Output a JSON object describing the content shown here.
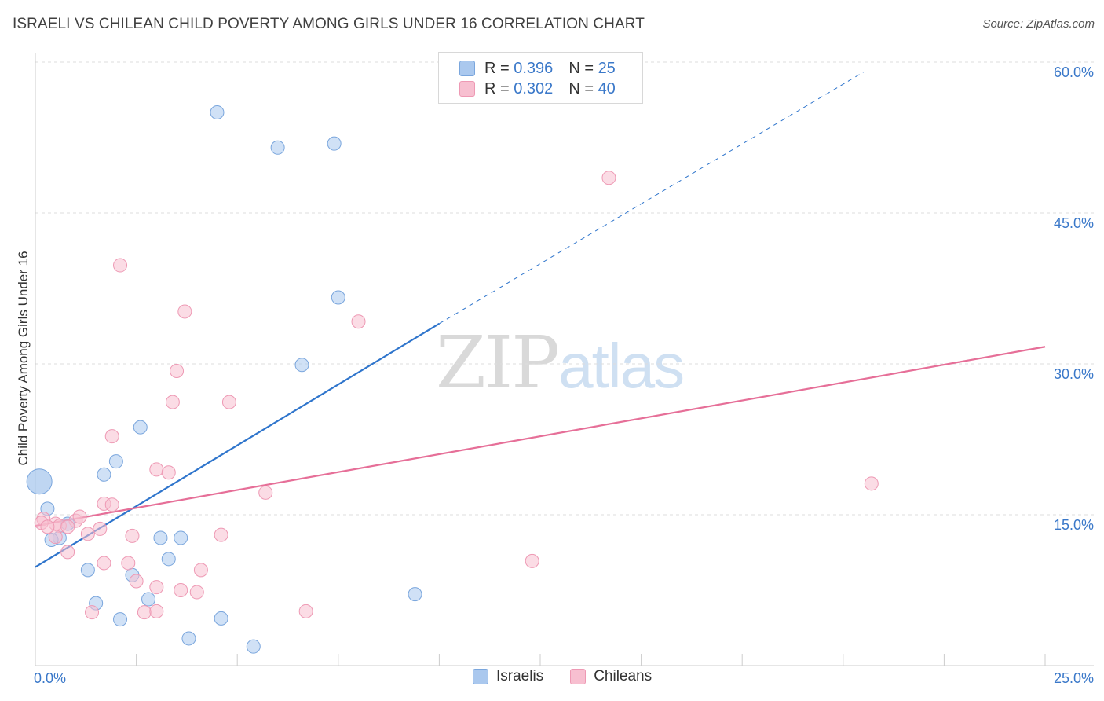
{
  "title": "ISRAELI VS CHILEAN CHILD POVERTY AMONG GIRLS UNDER 16 CORRELATION CHART",
  "source": "Source: ZipAtlas.com",
  "watermark": {
    "zip": "ZIP",
    "atlas": "atlas"
  },
  "legend_top": {
    "rows": [
      {
        "r_label": "R =",
        "r_value": "0.396",
        "n_label": "N =",
        "n_value": "25"
      },
      {
        "r_label": "R =",
        "r_value": "0.302",
        "n_label": "N =",
        "n_value": "40"
      }
    ]
  },
  "legend_bottom": [
    "Israelis",
    "Chileans"
  ],
  "colors": {
    "israelis_fill": "#aac8ee",
    "israelis_stroke": "#7aa6dd",
    "israelis_line": "#2f75cc",
    "chileans_fill": "#f7bfd0",
    "chileans_stroke": "#ee99b4",
    "chileans_line": "#e66f98",
    "axis_label": "#3a78c9",
    "grid": "#dddddd"
  },
  "chart_data": {
    "type": "scatter",
    "title": "ISRAELI VS CHILEAN CHILD POVERTY AMONG GIRLS UNDER 16 CORRELATION CHART",
    "xlabel": "",
    "ylabel": "Child Poverty Among Girls Under 16",
    "xlim": [
      0,
      25
    ],
    "ylim": [
      0,
      60
    ],
    "x_tick_labels": [
      "0.0%",
      "25.0%"
    ],
    "y_ticks": [
      15,
      30,
      45,
      60
    ],
    "y_tick_labels": [
      "15.0%",
      "30.0%",
      "45.0%",
      "60.0%"
    ],
    "grid": true,
    "series": [
      {
        "name": "Israelis",
        "R": 0.396,
        "N": 25,
        "points": [
          [
            4.5,
            55.0
          ],
          [
            6.0,
            51.5
          ],
          [
            7.4,
            51.9
          ],
          [
            7.5,
            36.6
          ],
          [
            6.6,
            29.9
          ],
          [
            2.6,
            23.7
          ],
          [
            2.0,
            20.3
          ],
          [
            1.7,
            19.0
          ],
          [
            0.3,
            15.6
          ],
          [
            0.8,
            14.1
          ],
          [
            0.6,
            12.7
          ],
          [
            0.4,
            12.5
          ],
          [
            3.1,
            12.7
          ],
          [
            3.6,
            12.7
          ],
          [
            3.3,
            10.6
          ],
          [
            1.3,
            9.5
          ],
          [
            2.4,
            9.0
          ],
          [
            9.4,
            7.1
          ],
          [
            2.8,
            6.6
          ],
          [
            1.5,
            6.2
          ],
          [
            2.1,
            4.6
          ],
          [
            4.6,
            4.7
          ],
          [
            3.8,
            2.7
          ],
          [
            5.4,
            1.9
          ],
          [
            0.1,
            18.3
          ]
        ],
        "trend": {
          "x0": 0,
          "y0": 9.8,
          "x1": 10,
          "y1": 34.0,
          "dashed_to": [
            20.5,
            59.0
          ]
        }
      },
      {
        "name": "Chileans",
        "R": 0.302,
        "N": 40,
        "points": [
          [
            14.2,
            48.5
          ],
          [
            2.1,
            39.8
          ],
          [
            3.7,
            35.2
          ],
          [
            8.0,
            34.2
          ],
          [
            3.5,
            29.3
          ],
          [
            3.4,
            26.2
          ],
          [
            4.8,
            26.2
          ],
          [
            1.9,
            22.8
          ],
          [
            3.0,
            19.5
          ],
          [
            3.3,
            19.2
          ],
          [
            20.7,
            18.1
          ],
          [
            5.7,
            17.2
          ],
          [
            1.7,
            16.1
          ],
          [
            1.9,
            16.0
          ],
          [
            0.2,
            14.6
          ],
          [
            0.5,
            14.1
          ],
          [
            1.0,
            14.4
          ],
          [
            1.1,
            14.8
          ],
          [
            0.6,
            13.9
          ],
          [
            0.8,
            13.8
          ],
          [
            1.6,
            13.6
          ],
          [
            1.3,
            13.1
          ],
          [
            0.5,
            12.8
          ],
          [
            2.4,
            12.9
          ],
          [
            4.6,
            13.0
          ],
          [
            0.8,
            11.3
          ],
          [
            12.3,
            10.4
          ],
          [
            1.7,
            10.2
          ],
          [
            2.3,
            10.2
          ],
          [
            4.1,
            9.5
          ],
          [
            2.5,
            8.4
          ],
          [
            3.0,
            7.8
          ],
          [
            3.6,
            7.5
          ],
          [
            4.0,
            7.3
          ],
          [
            1.4,
            5.3
          ],
          [
            2.7,
            5.3
          ],
          [
            3.0,
            5.4
          ],
          [
            6.7,
            5.4
          ],
          [
            0.15,
            14.2
          ],
          [
            0.3,
            13.8
          ]
        ],
        "trend": {
          "x0": 0,
          "y0": 13.9,
          "x1": 25,
          "y1": 31.7
        }
      }
    ]
  }
}
